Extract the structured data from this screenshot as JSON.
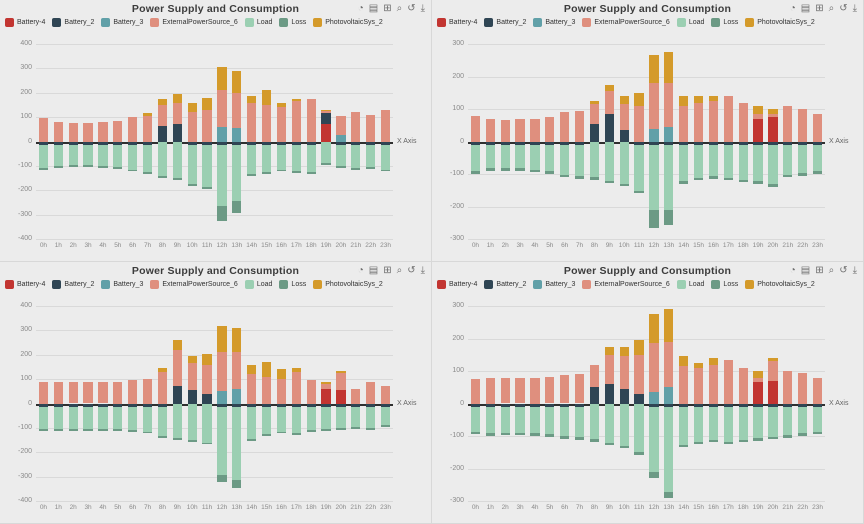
{
  "page": {
    "background": "#ececec"
  },
  "legend": [
    "Battery-4",
    "Battery_2",
    "Battery_3",
    "ExternalPowerSource_6",
    "Load",
    "Loss",
    "PhotovoltaicSys_2"
  ],
  "palette": {
    "Battery-4": "#c23531",
    "Battery_2": "#2f4554",
    "Battery_3": "#61a0a8",
    "ExternalPowerSource_6": "#df8f7e",
    "Load": "#9bcfb2",
    "Loss": "#6c9a85",
    "PhotovoltaicSys_2": "#d49a2a"
  },
  "toolbox_icons": [
    {
      "name": "magic-type-icon",
      "glyph": "◔"
    },
    {
      "name": "data-view-icon",
      "glyph": "▤"
    },
    {
      "name": "data-zoom-icon",
      "glyph": "⊞"
    },
    {
      "name": "zoom-icon",
      "glyph": "⌕"
    },
    {
      "name": "restore-icon",
      "glyph": "↺"
    },
    {
      "name": "save-image-icon",
      "glyph": "⤓"
    }
  ],
  "chart_data": [
    {
      "type": "bar",
      "title": "Power Supply and Consumption",
      "x_axis_label": "X Axis",
      "ymax": 400,
      "ymin": -400,
      "ytick": 100,
      "legend_position": "top-left",
      "grid": true,
      "categories": [
        "0h",
        "1h",
        "2h",
        "3h",
        "4h",
        "5h",
        "6h",
        "7h",
        "8h",
        "9h",
        "10h",
        "11h",
        "12h",
        "13h",
        "14h",
        "15h",
        "16h",
        "17h",
        "18h",
        "19h",
        "20h",
        "21h",
        "22h",
        "23h"
      ],
      "series": [
        {
          "name": "Battery-4",
          "values": [
            0,
            0,
            0,
            0,
            0,
            0,
            0,
            0,
            0,
            0,
            0,
            0,
            0,
            0,
            0,
            0,
            0,
            0,
            0,
            70,
            0,
            0,
            0,
            0
          ]
        },
        {
          "name": "Battery_2",
          "values": [
            -15,
            -15,
            -15,
            -15,
            -15,
            -15,
            -15,
            -15,
            65,
            70,
            -15,
            -15,
            -15,
            -15,
            -15,
            -15,
            -15,
            -15,
            -15,
            45,
            -15,
            -15,
            -15,
            -15
          ]
        },
        {
          "name": "Battery_3",
          "values": [
            0,
            0,
            0,
            0,
            0,
            0,
            0,
            0,
            0,
            0,
            0,
            0,
            60,
            55,
            0,
            0,
            0,
            0,
            0,
            0,
            25,
            0,
            0,
            0
          ]
        },
        {
          "name": "ExternalPowerSource_6",
          "values": [
            95,
            80,
            75,
            75,
            80,
            85,
            100,
            105,
            85,
            90,
            120,
            130,
            150,
            145,
            160,
            150,
            140,
            165,
            175,
            10,
            80,
            120,
            110,
            130
          ]
        },
        {
          "name": "Load",
          "values": [
            -95,
            -85,
            -80,
            -80,
            -85,
            -90,
            -100,
            -110,
            -140,
            -150,
            -160,
            -170,
            -250,
            -230,
            -120,
            -110,
            -100,
            -105,
            -110,
            -90,
            -85,
            -95,
            -90,
            -100
          ]
        },
        {
          "name": "Loss",
          "values": [
            -8,
            -8,
            -8,
            -8,
            -8,
            -8,
            -8,
            -8,
            -8,
            -8,
            -8,
            -8,
            -60,
            -50,
            -8,
            -8,
            -8,
            -8,
            -8,
            -8,
            -8,
            -8,
            -8,
            -8
          ]
        },
        {
          "name": "PhotovoltaicSys_2",
          "values": [
            0,
            0,
            0,
            0,
            0,
            0,
            0,
            10,
            25,
            35,
            40,
            50,
            95,
            90,
            25,
            60,
            20,
            10,
            0,
            5,
            0,
            0,
            0,
            0
          ]
        }
      ]
    },
    {
      "type": "bar",
      "title": "Power Supply and Consumption",
      "x_axis_label": "X Axis",
      "ymax": 300,
      "ymin": -300,
      "ytick": 100,
      "legend_position": "top-left",
      "grid": true,
      "categories": [
        "0h",
        "1h",
        "2h",
        "3h",
        "4h",
        "5h",
        "6h",
        "7h",
        "8h",
        "9h",
        "10h",
        "11h",
        "12h",
        "13h",
        "14h",
        "15h",
        "16h",
        "17h",
        "18h",
        "19h",
        "20h",
        "21h",
        "22h",
        "23h"
      ],
      "series": [
        {
          "name": "Battery-4",
          "values": [
            0,
            0,
            0,
            0,
            0,
            0,
            0,
            0,
            0,
            0,
            0,
            0,
            0,
            0,
            0,
            0,
            0,
            0,
            0,
            70,
            75,
            0,
            0,
            0
          ]
        },
        {
          "name": "Battery_2",
          "values": [
            -12,
            -12,
            -12,
            -12,
            -12,
            -12,
            -12,
            -12,
            55,
            85,
            35,
            -12,
            -12,
            -12,
            -12,
            -12,
            -12,
            -12,
            -12,
            -12,
            -12,
            -12,
            -12,
            -12
          ]
        },
        {
          "name": "Battery_3",
          "values": [
            0,
            0,
            0,
            0,
            0,
            0,
            0,
            0,
            0,
            0,
            0,
            0,
            40,
            45,
            0,
            0,
            0,
            0,
            0,
            0,
            0,
            0,
            0,
            0
          ]
        },
        {
          "name": "ExternalPowerSource_6",
          "values": [
            80,
            70,
            65,
            70,
            70,
            75,
            90,
            95,
            60,
            70,
            80,
            110,
            140,
            135,
            110,
            120,
            125,
            140,
            120,
            15,
            10,
            110,
            100,
            85
          ]
        },
        {
          "name": "Load",
          "values": [
            -80,
            -70,
            -70,
            -70,
            -75,
            -80,
            -90,
            -95,
            -110,
            -120,
            -130,
            -140,
            -200,
            -200,
            -110,
            -100,
            -95,
            -100,
            -105,
            -110,
            -120,
            -90,
            -85,
            -80
          ]
        },
        {
          "name": "Loss",
          "values": [
            -8,
            -8,
            -8,
            -8,
            -8,
            -8,
            -8,
            -8,
            -8,
            -8,
            -8,
            -8,
            -55,
            -45,
            -8,
            -8,
            -8,
            -8,
            -8,
            -8,
            -8,
            -8,
            -8,
            -8
          ]
        },
        {
          "name": "PhotovoltaicSys_2",
          "values": [
            0,
            0,
            0,
            0,
            0,
            0,
            0,
            0,
            10,
            20,
            25,
            40,
            85,
            95,
            30,
            20,
            15,
            0,
            0,
            25,
            15,
            0,
            0,
            0
          ]
        }
      ]
    },
    {
      "type": "bar",
      "title": "Power Supply and Consumption",
      "x_axis_label": "X Axis",
      "ymax": 400,
      "ymin": -400,
      "ytick": 100,
      "legend_position": "top-left",
      "grid": true,
      "categories": [
        "0h",
        "1h",
        "2h",
        "3h",
        "4h",
        "5h",
        "6h",
        "7h",
        "8h",
        "9h",
        "10h",
        "11h",
        "12h",
        "13h",
        "14h",
        "15h",
        "16h",
        "17h",
        "18h",
        "19h",
        "20h",
        "21h",
        "22h",
        "23h"
      ],
      "series": [
        {
          "name": "Battery-4",
          "values": [
            0,
            0,
            0,
            0,
            0,
            0,
            0,
            0,
            0,
            0,
            0,
            0,
            0,
            0,
            0,
            0,
            0,
            0,
            0,
            60,
            55,
            0,
            0,
            0
          ]
        },
        {
          "name": "Battery_2",
          "values": [
            -15,
            -15,
            -15,
            -15,
            -15,
            -15,
            -15,
            -15,
            -15,
            70,
            55,
            40,
            -15,
            -15,
            -15,
            -15,
            -15,
            -15,
            -15,
            -15,
            -15,
            -15,
            -15,
            -15
          ]
        },
        {
          "name": "Battery_3",
          "values": [
            0,
            0,
            0,
            0,
            0,
            0,
            0,
            0,
            0,
            0,
            0,
            0,
            50,
            60,
            0,
            0,
            0,
            0,
            0,
            0,
            0,
            0,
            0,
            0
          ]
        },
        {
          "name": "ExternalPowerSource_6",
          "values": [
            90,
            90,
            88,
            88,
            88,
            90,
            95,
            100,
            130,
            150,
            110,
            120,
            160,
            150,
            120,
            110,
            100,
            130,
            95,
            20,
            70,
            60,
            90,
            70
          ]
        },
        {
          "name": "Load",
          "values": [
            -90,
            -90,
            -88,
            -88,
            -88,
            -90,
            -95,
            -100,
            -120,
            -140,
            -150,
            -160,
            -280,
            -300,
            -130,
            -110,
            -100,
            -105,
            -95,
            -90,
            -85,
            -80,
            -85,
            -75
          ]
        },
        {
          "name": "Loss",
          "values": [
            -8,
            -8,
            -8,
            -8,
            -8,
            -8,
            -8,
            -8,
            -8,
            -8,
            -8,
            -8,
            -25,
            -30,
            -8,
            -8,
            -8,
            -8,
            -8,
            -8,
            -8,
            -8,
            -8,
            -8
          ]
        },
        {
          "name": "PhotovoltaicSys_2",
          "values": [
            0,
            0,
            0,
            0,
            0,
            0,
            0,
            0,
            15,
            40,
            30,
            45,
            110,
            100,
            40,
            60,
            40,
            15,
            0,
            10,
            10,
            0,
            0,
            0
          ]
        }
      ]
    },
    {
      "type": "bar",
      "title": "Power Supply and Consumption",
      "x_axis_label": "X Axis",
      "ymax": 300,
      "ymin": -300,
      "ytick": 100,
      "legend_position": "top-left",
      "grid": true,
      "categories": [
        "0h",
        "1h",
        "2h",
        "3h",
        "4h",
        "5h",
        "6h",
        "7h",
        "8h",
        "9h",
        "10h",
        "11h",
        "12h",
        "13h",
        "14h",
        "15h",
        "16h",
        "17h",
        "18h",
        "19h",
        "20h",
        "21h",
        "22h",
        "23h"
      ],
      "series": [
        {
          "name": "Battery-4",
          "values": [
            0,
            0,
            0,
            0,
            0,
            0,
            0,
            0,
            0,
            0,
            0,
            0,
            0,
            0,
            0,
            0,
            0,
            0,
            0,
            65,
            70,
            0,
            0,
            0
          ]
        },
        {
          "name": "Battery_2",
          "values": [
            -12,
            -12,
            -12,
            -12,
            -12,
            -12,
            -12,
            -12,
            50,
            60,
            45,
            30,
            -12,
            -12,
            -12,
            -12,
            -12,
            -12,
            -12,
            -12,
            -12,
            -12,
            -12,
            -12
          ]
        },
        {
          "name": "Battery_3",
          "values": [
            0,
            0,
            0,
            0,
            0,
            0,
            0,
            0,
            0,
            0,
            0,
            0,
            35,
            50,
            0,
            0,
            0,
            0,
            0,
            0,
            0,
            0,
            0,
            0
          ]
        },
        {
          "name": "ExternalPowerSource_6",
          "values": [
            75,
            80,
            78,
            78,
            80,
            82,
            88,
            92,
            70,
            90,
            100,
            120,
            150,
            140,
            115,
            110,
            120,
            135,
            110,
            15,
            60,
            100,
            95,
            80
          ]
        },
        {
          "name": "Load",
          "values": [
            -75,
            -80,
            -78,
            -78,
            -80,
            -82,
            -88,
            -92,
            -110,
            -120,
            -130,
            -150,
            -200,
            -260,
            -115,
            -105,
            -100,
            -105,
            -100,
            -95,
            -90,
            -85,
            -80,
            -75
          ]
        },
        {
          "name": "Loss",
          "values": [
            -8,
            -8,
            -8,
            -8,
            -8,
            -8,
            -8,
            -8,
            -8,
            -8,
            -8,
            -8,
            -18,
            -20,
            -8,
            -8,
            -8,
            -8,
            -8,
            -8,
            -8,
            -8,
            -8,
            -8
          ]
        },
        {
          "name": "PhotovoltaicSys_2",
          "values": [
            0,
            0,
            0,
            0,
            0,
            0,
            0,
            0,
            0,
            25,
            30,
            45,
            90,
            100,
            30,
            15,
            20,
            0,
            0,
            20,
            10,
            0,
            0,
            0
          ]
        }
      ]
    }
  ]
}
